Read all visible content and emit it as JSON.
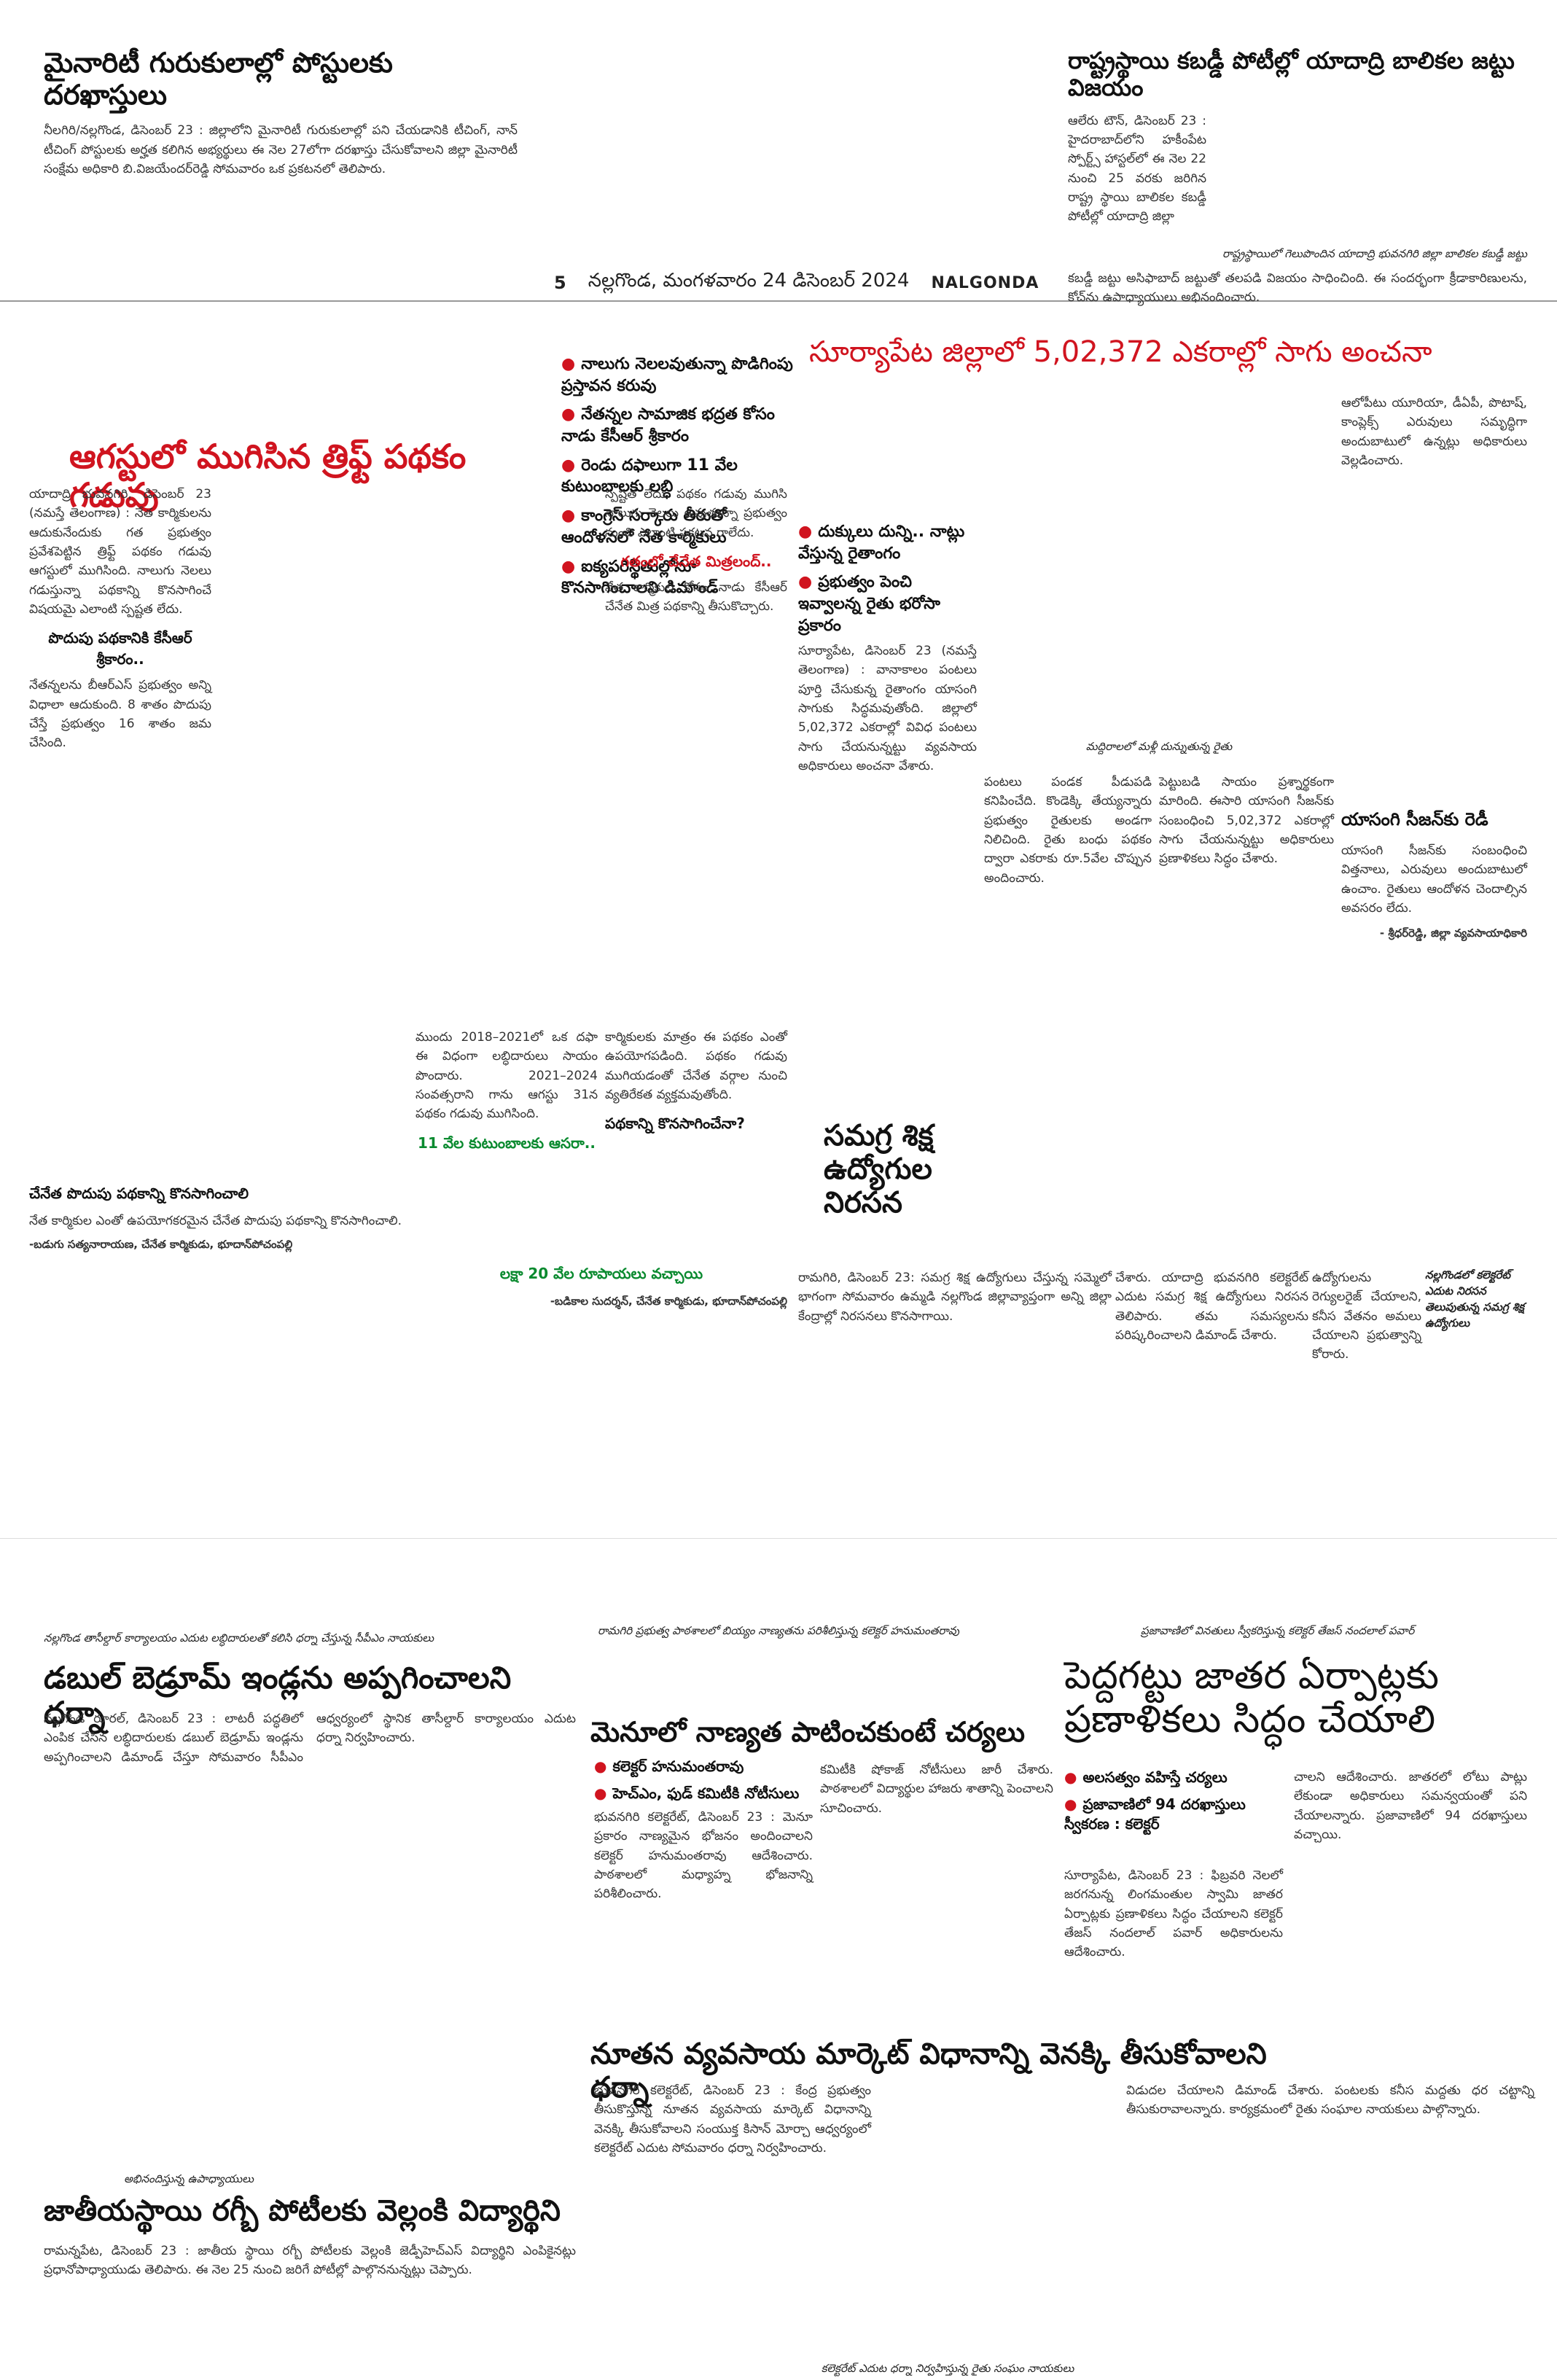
{
  "masthead": {
    "page_no": "5",
    "dateline": "నల్లగొండ, మంగళవారం 24 డిసెంబర్ 2024",
    "edition": "NALGONDA"
  },
  "top_left": {
    "headline": "మైనారిటీ గురుకులాల్లో పోస్టులకు దరఖాస్తులు",
    "body": "నీలగిరి/నల్లగొండ, డిసెంబర్ 23 : జిల్లాలోని మైనారిటీ గురుకులాల్లో పని చేయడానికి టీచింగ్, నాన్ టీచింగ్ పోస్టులకు అర్హత కలిగిన అభ్యర్థులు ఈ నెల 27లోగా దరఖాస్తు చేసుకోవాలని జిల్లా మైనారిటీ సంక్షేమ అధికారి బి.విజయేందర్‌రెడ్డి సోమవారం ఒక ప్రకటనలో తెలిపారు."
  },
  "top_right": {
    "headline": "రాష్ట్రస్థాయి కబడ్డీ పోటీల్లో యాదాద్రి బాలికల జట్టు విజయం",
    "body": "ఆలేరు టౌన్, డిసెంబర్ 23 : హైదరాబాద్‌లోని హకీంపేట స్పోర్ట్స్ హాస్టల్‌లో ఈ నెల 22 నుంచి 25 వరకు జరిగిన రాష్ట్ర స్థాయి బాలికల కబడ్డీ పోటీల్లో యాదాద్రి జిల్లా",
    "caption": "రాష్ట్రస్థాయిలో గెలుపొందిన యాదాద్రి భువనగిరి జిల్లా బాలికల కబడ్డీ జట్టు",
    "body2": "కబడ్డీ జట్టు అసిఫాబాద్ జట్టుతో తలపడి విజయం సాధించింది. ఈ సందర్భంగా క్రీడాకారిణులను, కోచ్‌ను ఉపాధ్యాయులు అభినందించారు."
  },
  "rythu": {
    "headline": "ఆగస్టులో ముగిసిన త్రిఫ్ట్ పథకం గడువు",
    "bullets": [
      "నాలుగు నెలలవుతున్నా పొడిగింపు ప్రస్తావన కరువు",
      "నేతన్నల సామాజిక భద్రత కోసం నాడు కేసీఆర్ శ్రీకారం",
      "రెండు దఫాలుగా 11 వేల కుటుంబాలకు లబ్ధి",
      "కాంగ్రెస్ సర్కారు తీరుతో ఆందోళనలో నేత కార్మికులు",
      "ఐక్యపరిస్థితుల్లోనూ కొనసాగించాలని డిమాండ్"
    ],
    "col1": "యాదాద్రి భువనగిరి, డిసెంబర్ 23 (నమస్తే తెలంగాణ) : నేత కార్మికులను ఆదుకునేందుకు గత ప్రభుత్వం ప్రవేశపెట్టిన త్రిఫ్ట్ పథకం గడువు ఆగస్టులో ముగిసింది. నాలుగు నెలలు గడుస్తున్నా పథకాన్ని కొనసాగించే విషయమై ఎలాంటి స్పష్టత లేదు.",
    "sub1": "పొదుపు పథకానికి కేసీఆర్ శ్రీకారం..",
    "col1b": "నేతన్నలను బీఆర్‌ఎస్ ప్రభుత్వం అన్ని విధాలా ఆదుకుంది. 8 శాతం పొదుపు చేస్తే ప్రభుత్వం 16 శాతం జమ చేసింది.",
    "sub_red": "చేనేత పొదుపు పథకాన్ని కొనసాగించాలి",
    "col1c": "నేత కార్మికుల ఎంతో ఉపయోగకరమైన చేనేత పొదుపు పథకాన్ని కొనసాగించాలి.",
    "sig1": "-బడుగు సత్యనారాయణ, చేనేత కార్మికుడు, భూదాన్‌పోచంపల్లి",
    "col2": "ముందు 2018–2021లో ఒక దఫా ఈ విధంగా లబ్ధిదారులు సాయం పొందారు. 2021–2024 సంవత్సరాని గాను ఆగస్టు 31న పథకం గడువు ముగిసింది.",
    "sub2": "11 వేల కుటుంబాలకు ఆసరా..",
    "col3": "కార్మికులకు మాత్రం ఈ పథకం ఎంతో ఉపయోగపడింది. పథకం గడువు ముగియడంతో చేనేత వర్గాల నుంచి వ్యతిరేకత వ్యక్తమవుతోంది.",
    "sub3": "పథకాన్ని కొనసాగించేనా?",
    "sub4": "లక్షా 20 వేల రూపాయలు వచ్చాయి",
    "col4": "స్పష్టత లేదు. పథకం గడువు ముగిసి నాలుగు నెలలు అవుతున్నా ప్రభుత్వం నుంచి ఎలాంటి ప్రకటన రాలేదు.",
    "sub5": "గతంలో చేనేత మిత్రలంద్..",
    "col5": "నేత కార్మికుల కోసం నాడు కేసీఆర్ చేనేత మిత్ర పథకాన్ని తీసుకొచ్చారు.",
    "sig2": "-బడికాల సుదర్శన్, చేనేత కార్మికుడు, భూదాన్‌పోచంపల్లి"
  },
  "suryapet": {
    "headline": "సూర్యాపేట జిల్లాలో 5,02,372 ఎకరాల్లో సాగు అంచనా",
    "bullets": [
      "దుక్కులు దున్ని.. నాట్లు వేస్తున్న రైతాంగం",
      "ప్రభుత్వం పెంచి ఇవ్వాలన్న రైతు భరోసా ప్రకారం"
    ],
    "caption": "మద్దిరాలలో మళ్లీ దున్నుతున్న రైతు",
    "body": "సూర్యాపేట, డిసెంబర్ 23 (నమస్తే తెలంగాణ) : వానాకాలం పంటలు పూర్తి చేసుకున్న రైతాంగం యాసంగి సాగుకు సిద్ధమవుతోంది. జిల్లాలో 5,02,372 ఎకరాల్లో వివిధ పంటలు సాగు చేయనున్నట్టు వ్యవసాయ అధికారులు అంచనా వేశారు.",
    "body2": "పంటలు పండక పీడుపడి కనిపించేది. కొండెక్కి తేయ్యన్నారు ప్రభుత్వం రైతులకు అండగా నిలిచింది. రైతు బంధు పథకం ద్వారా ఎకరాకు రూ.5వేల చొప్పున అందించారు.",
    "body3": "పెట్టుబడి సాయం ప్రశ్నార్థకంగా మారింది. ఈసారి యాసంగి సీజన్‌కు సంబంధించి 5,02,372 ఎకరాల్లో సాగు చేయనున్నట్టు అధికారులు ప్రణాళికలు సిద్ధం చేశారు.",
    "body4": "ఆలోపీటు యూరియా, డీఏపీ, పొటాష్, కాంప్లెక్స్ ఎరువులు సమృద్ధిగా అందుబాటులో ఉన్నట్లు అధికారులు వెల్లడించారు.",
    "sub": "యాసంగి సీజన్‌కు రెడీ",
    "body5": "యాసంగి సీజన్‌కు సంబంధించి విత్తనాలు, ఎరువులు అందుబాటులో ఉంచాం. రైతులు ఆందోళన చెందాల్సిన అవసరం లేదు.",
    "sig": "- శ్రీధర్‌రెడ్డి, జిల్లా వ్యవసాయాధికారి"
  },
  "samagra": {
    "headline": "సమగ్ర శిక్ష ఉద్యోగుల నిరసన",
    "body": "రామగిరి, డిసెంబర్ 23: సమగ్ర శిక్ష ఉద్యోగులు చేస్తున్న సమ్మెలో భాగంగా సోమవారం ఉమ్మడి నల్లగొండ జిల్లావ్యాప్తంగా అన్ని జిల్లా కేంద్రాల్లో నిరసనలు కొనసాగాయి.",
    "body2": "చేశారు. యాదాద్రి భువనగిరి కలెక్టరేట్ ఎదుట సమగ్ర శిక్ష ఉద్యోగులు నిరసన తెలిపారు. తమ సమస్యలను పరిష్కరించాలని డిమాండ్ చేశారు.",
    "body3": "ఉద్యోగులను రెగ్యులరైజ్ చేయాలని, కనీస వేతనం అమలు చేయాలని ప్రభుత్వాన్ని కోరారు.",
    "caption": "నల్లగొండలో కలెక్టరేట్ ఎదుట నిరసన తెలుపుతున్న సమగ్ర శిక్ష ఉద్యోగులు"
  },
  "double_bed": {
    "caption": "నల్లగొండ తాసీల్దార్ కార్యాలయం ఎదుట లబ్ధిదారులతో కలిసి ధర్నా చేస్తున్న సీపీఎం నాయకులు",
    "headline": "డబుల్ బెడ్రూమ్ ఇండ్లను అప్పగించాలని ధర్నా",
    "body": "నల్లగొండ రూరల్, డిసెంబర్ 23 : లాటరీ పద్ధతిలో ఎంపిక చేసిన లబ్ధిదారులకు డబుల్ బెడ్రూమ్ ఇండ్లను అప్పగించాలని డిమాండ్ చేస్తూ సోమవారం సీపీఎం ఆధ్వర్యంలో స్థానిక తాసీల్దార్ కార్యాలయం ఎదుట ధర్నా నిర్వహించారు."
  },
  "menu": {
    "caption": "రామగిరి ప్రభుత్వ పాఠశాలలో బియ్యం నాణ్యతను పరిశీలిస్తున్న కలెక్టర్ హనుమంతరావు",
    "headline": "మెనూలో నాణ్యత పాటించకుంటే చర్యలు",
    "bullets": [
      "కలెక్టర్ హనుమంతరావు",
      "హెచ్‌ఎం, ఫుడ్ కమిటీకి నోటీసులు"
    ],
    "body": "భువనగిరి కలెక్టరేట్, డిసెంబర్ 23 : మెనూ ప్రకారం నాణ్యమైన భోజనం అందించాలని కలెక్టర్ హనుమంతరావు ఆదేశించారు. పాఠశాలలో మధ్యాహ్న భోజనాన్ని పరిశీలించారు.",
    "body2": "కమిటీకి షోకాజ్ నోటీసులు జారీ చేశారు. పాఠశాలలో విద్యార్థుల హాజరు శాతాన్ని పెంచాలని సూచించారు."
  },
  "peddagattu": {
    "caption": "ప్రజావాణిలో వినతులు స్వీకరిస్తున్న కలెక్టర్ తేజస్ నందలాల్ పవార్",
    "headline": "పెద్దగట్టు జాతర ఏర్పాట్లకు ప్రణాళికలు సిద్ధం చేయాలి",
    "bullets": [
      "అలసత్వం వహిస్తే చర్యలు",
      "ప్రజావాణిలో 94 దరఖాస్తులు స్వీకరణ : కలెక్టర్"
    ],
    "body": "సూర్యాపేట, డిసెంబర్ 23 : ఫిబ్రవరి నెలలో జరగనున్న లింగమంతుల స్వామి జాతర ఏర్పాట్లకు ప్రణాళికలు సిద్ధం చేయాలని కలెక్టర్ తేజస్ నందలాల్ పవార్ అధికారులను ఆదేశించారు.",
    "body2": "చాలని ఆదేశించారు. జాతరలో లోటు పాట్లు లేకుండా అధికారులు సమన్వయంతో పని చేయాలన్నారు. ప్రజావాణిలో 94 దరఖాస్తులు వచ్చాయి."
  },
  "market": {
    "headline": "నూతన వ్యవసాయ మార్కెట్ విధానాన్ని వెనక్కి తీసుకోవాలని ధర్నా",
    "body": "భువనగిరి కలెక్టరేట్, డిసెంబర్ 23 : కేంద్ర ప్రభుత్వం తీసుకొస్తున్న నూతన వ్యవసాయ మార్కెట్ విధానాన్ని వెనక్కి తీసుకోవాలని సంయుక్త కిసాన్ మోర్చా ఆధ్వర్యంలో కలెక్టరేట్ ఎదుట సోమవారం ధర్నా నిర్వహించారు.",
    "body2": "విడుదల చేయాలని డిమాండ్ చేశారు. పంటలకు కనీస మద్దతు ధర చట్టాన్ని తీసుకురావాలన్నారు. కార్యక్రమంలో రైతు సంఘాల నాయకులు పాల్గొన్నారు.",
    "caption": "కలెక్టరేట్ ఎదుట ధర్నా నిర్వహిస్తున్న రైతు సంఘం నాయకులు"
  },
  "rugby": {
    "caption": "అభినందిస్తున్న ఉపాధ్యాయులు",
    "headline": "జాతీయస్థాయి రగ్బీ పోటీలకు వెల్లంకి విద్యార్థిని",
    "body": "రామన్నపేట, డిసెంబర్ 23 : జాతీయ స్థాయి రగ్బీ పోటీలకు వెల్లంకి జెడ్పీహెచ్‌ఎస్ విద్యార్థిని ఎంపికైనట్లు ప్రధానోపాధ్యాయుడు తెలిపారు. ఈ నెల 25 నుంచి జరిగే పోటీల్లో పాల్గొననున్నట్లు చెప్పారు."
  }
}
